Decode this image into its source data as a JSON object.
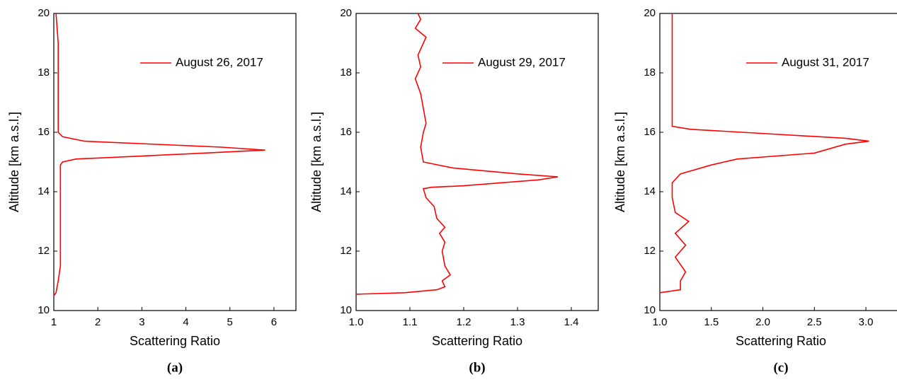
{
  "chart_data": [
    {
      "type": "line",
      "caption": "(a)",
      "xlabel": "Scattering Ratio",
      "ylabel": "Altitude [km a.s.l.]",
      "legend": "upper right",
      "x": [
        1.0,
        1.05,
        1.1,
        1.15,
        1.15,
        1.15,
        1.15,
        1.15,
        1.2,
        1.5,
        3,
        5.8,
        4.8,
        1.7,
        1.2,
        1.1,
        1.1,
        1.1,
        1.1,
        1.05
      ],
      "series": [
        {
          "name": "August 26, 2017",
          "color": "#ff0000",
          "values": [
            10.5,
            10.6,
            11,
            11.5,
            12,
            13,
            14,
            14.9,
            15.0,
            15.1,
            15.2,
            15.4,
            15.5,
            15.7,
            15.85,
            16,
            17,
            18,
            19,
            20
          ]
        }
      ],
      "xlim": [
        1,
        6.5
      ],
      "xticks": [
        1,
        2,
        3,
        4,
        5,
        6
      ],
      "ylim": [
        10,
        20
      ],
      "yticks": [
        10,
        12,
        14,
        16,
        18,
        20
      ]
    },
    {
      "type": "line",
      "caption": "(b)",
      "xlabel": "Scattering Ratio",
      "ylabel": "Altitude [km a.s.l.]",
      "legend": "upper right",
      "x": [
        1.0,
        1.09,
        1.15,
        1.165,
        1.16,
        1.175,
        1.165,
        1.16,
        1.165,
        1.155,
        1.165,
        1.15,
        1.145,
        1.13,
        1.125,
        1.14,
        1.2,
        1.34,
        1.375,
        1.3,
        1.18,
        1.125,
        1.12,
        1.125,
        1.13,
        1.125,
        1.12,
        1.11,
        1.12,
        1.115,
        1.13,
        1.11,
        1.12,
        1.115
      ],
      "series": [
        {
          "name": "August 29, 2017",
          "color": "#ff0000",
          "values": [
            10.55,
            10.6,
            10.7,
            10.8,
            11,
            11.2,
            11.5,
            12,
            12.3,
            12.6,
            12.8,
            13.1,
            13.5,
            13.8,
            14.1,
            14.15,
            14.2,
            14.4,
            14.5,
            14.6,
            14.8,
            15.0,
            15.5,
            16,
            16.3,
            16.8,
            17.3,
            17.8,
            18.2,
            18.6,
            19.2,
            19.5,
            19.8,
            20
          ]
        }
      ],
      "xlim": [
        1.0,
        1.45
      ],
      "xticks": [
        {
          "value": 1.0,
          "label": "1.0"
        },
        1.1,
        1.2,
        1.3,
        1.4
      ],
      "ylim": [
        10,
        20
      ],
      "yticks": [
        10,
        12,
        14,
        16,
        18,
        20
      ]
    },
    {
      "type": "line",
      "caption": "(c)",
      "xlabel": "Scattering Ratio",
      "ylabel": "Altitude [km a.s.l.]",
      "legend": "upper right",
      "x": [
        1.0,
        1.2,
        1.2,
        1.25,
        1.15,
        1.25,
        1.15,
        1.28,
        1.15,
        1.12,
        1.12,
        1.2,
        1.5,
        1.75,
        2.5,
        2.8,
        3.03,
        2.8,
        1.8,
        1.3,
        1.12,
        1.12,
        1.12,
        1.12,
        1.12,
        1.12
      ],
      "series": [
        {
          "name": "August 31, 2017",
          "color": "#ff0000",
          "values": [
            10.6,
            10.7,
            11,
            11.3,
            11.8,
            12.2,
            12.6,
            13,
            13.3,
            13.8,
            14.3,
            14.6,
            14.9,
            15.1,
            15.3,
            15.6,
            15.7,
            15.8,
            16.0,
            16.1,
            16.2,
            16.5,
            17,
            18,
            19,
            20
          ]
        }
      ],
      "xlim": [
        1.0,
        3.35
      ],
      "xticks": [
        {
          "value": 1.0,
          "label": "1.0"
        },
        1.5,
        {
          "value": 2.0,
          "label": "2.0"
        },
        2.5,
        {
          "value": 3.0,
          "label": "3.0"
        }
      ],
      "ylim": [
        10,
        20
      ],
      "yticks": [
        10,
        12,
        14,
        16,
        18,
        20
      ]
    }
  ]
}
